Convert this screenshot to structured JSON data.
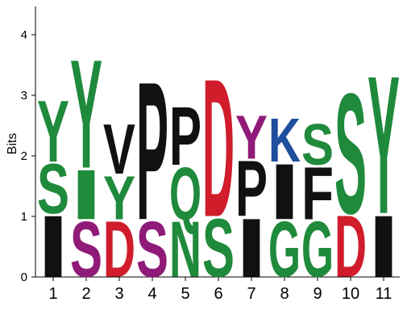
{
  "chart_data": {
    "type": "sequence-logo",
    "ylabel": "Bits",
    "ylim": [
      0,
      4.5
    ],
    "yticks": [
      "0",
      "1",
      "2",
      "3",
      "4"
    ],
    "colors": {
      "hydrophobic": "#111111",
      "polar": "#1f8a3b",
      "acidic": "#d01c2b",
      "basic": "#1f4e9c",
      "amide": "#8f1a78"
    },
    "positions": [
      {
        "label": "1",
        "letters": [
          {
            "char": "I",
            "bits": 1.05,
            "color": "#111111"
          },
          {
            "char": "S",
            "bits": 0.85,
            "color": "#1f8a3b"
          },
          {
            "char": "Y",
            "bits": 1.05,
            "color": "#1f8a3b"
          }
        ]
      },
      {
        "label": "2",
        "letters": [
          {
            "char": "S",
            "bits": 0.95,
            "color": "#8f1a78"
          },
          {
            "char": "I",
            "bits": 0.85,
            "color": "#1f8a3b"
          },
          {
            "char": "Y",
            "bits": 1.85,
            "color": "#1f8a3b"
          }
        ]
      },
      {
        "label": "3",
        "letters": [
          {
            "char": "D",
            "bits": 0.95,
            "color": "#d01c2b"
          },
          {
            "char": "Y",
            "bits": 0.75,
            "color": "#1f8a3b"
          },
          {
            "char": "V",
            "bits": 0.85,
            "color": "#111111"
          }
        ]
      },
      {
        "label": "4",
        "letters": [
          {
            "char": "S",
            "bits": 0.95,
            "color": "#8f1a78"
          },
          {
            "char": "P",
            "bits": 2.35,
            "color": "#111111"
          }
        ]
      },
      {
        "label": "5",
        "letters": [
          {
            "char": "N",
            "bits": 0.95,
            "color": "#1f8a3b"
          },
          {
            "char": "Q",
            "bits": 0.9,
            "color": "#1f8a3b"
          },
          {
            "char": "P",
            "bits": 1.0,
            "color": "#111111"
          }
        ]
      },
      {
        "label": "6",
        "letters": [
          {
            "char": "S",
            "bits": 1.0,
            "color": "#1f8a3b"
          },
          {
            "char": "D",
            "bits": 2.35,
            "color": "#d01c2b"
          }
        ]
      },
      {
        "label": "7",
        "letters": [
          {
            "char": "I",
            "bits": 1.0,
            "color": "#111111"
          },
          {
            "char": "P",
            "bits": 0.95,
            "color": "#111111"
          },
          {
            "char": "Y",
            "bits": 0.75,
            "color": "#8f1a78"
          }
        ]
      },
      {
        "label": "8",
        "letters": [
          {
            "char": "G",
            "bits": 0.95,
            "color": "#1f8a3b"
          },
          {
            "char": "I",
            "bits": 0.95,
            "color": "#111111"
          },
          {
            "char": "K",
            "bits": 0.75,
            "color": "#1f4e9c"
          }
        ]
      },
      {
        "label": "9",
        "letters": [
          {
            "char": "G",
            "bits": 0.95,
            "color": "#1f8a3b"
          },
          {
            "char": "F",
            "bits": 0.9,
            "color": "#111111"
          },
          {
            "char": "S",
            "bits": 0.7,
            "color": "#1f8a3b"
          }
        ]
      },
      {
        "label": "10",
        "letters": [
          {
            "char": "D",
            "bits": 1.05,
            "color": "#d01c2b"
          },
          {
            "char": "S",
            "bits": 2.05,
            "color": "#1f8a3b"
          }
        ]
      },
      {
        "label": "11",
        "letters": [
          {
            "char": "I",
            "bits": 1.05,
            "color": "#111111"
          },
          {
            "char": "Y",
            "bits": 2.35,
            "color": "#1f8a3b"
          }
        ]
      }
    ]
  }
}
